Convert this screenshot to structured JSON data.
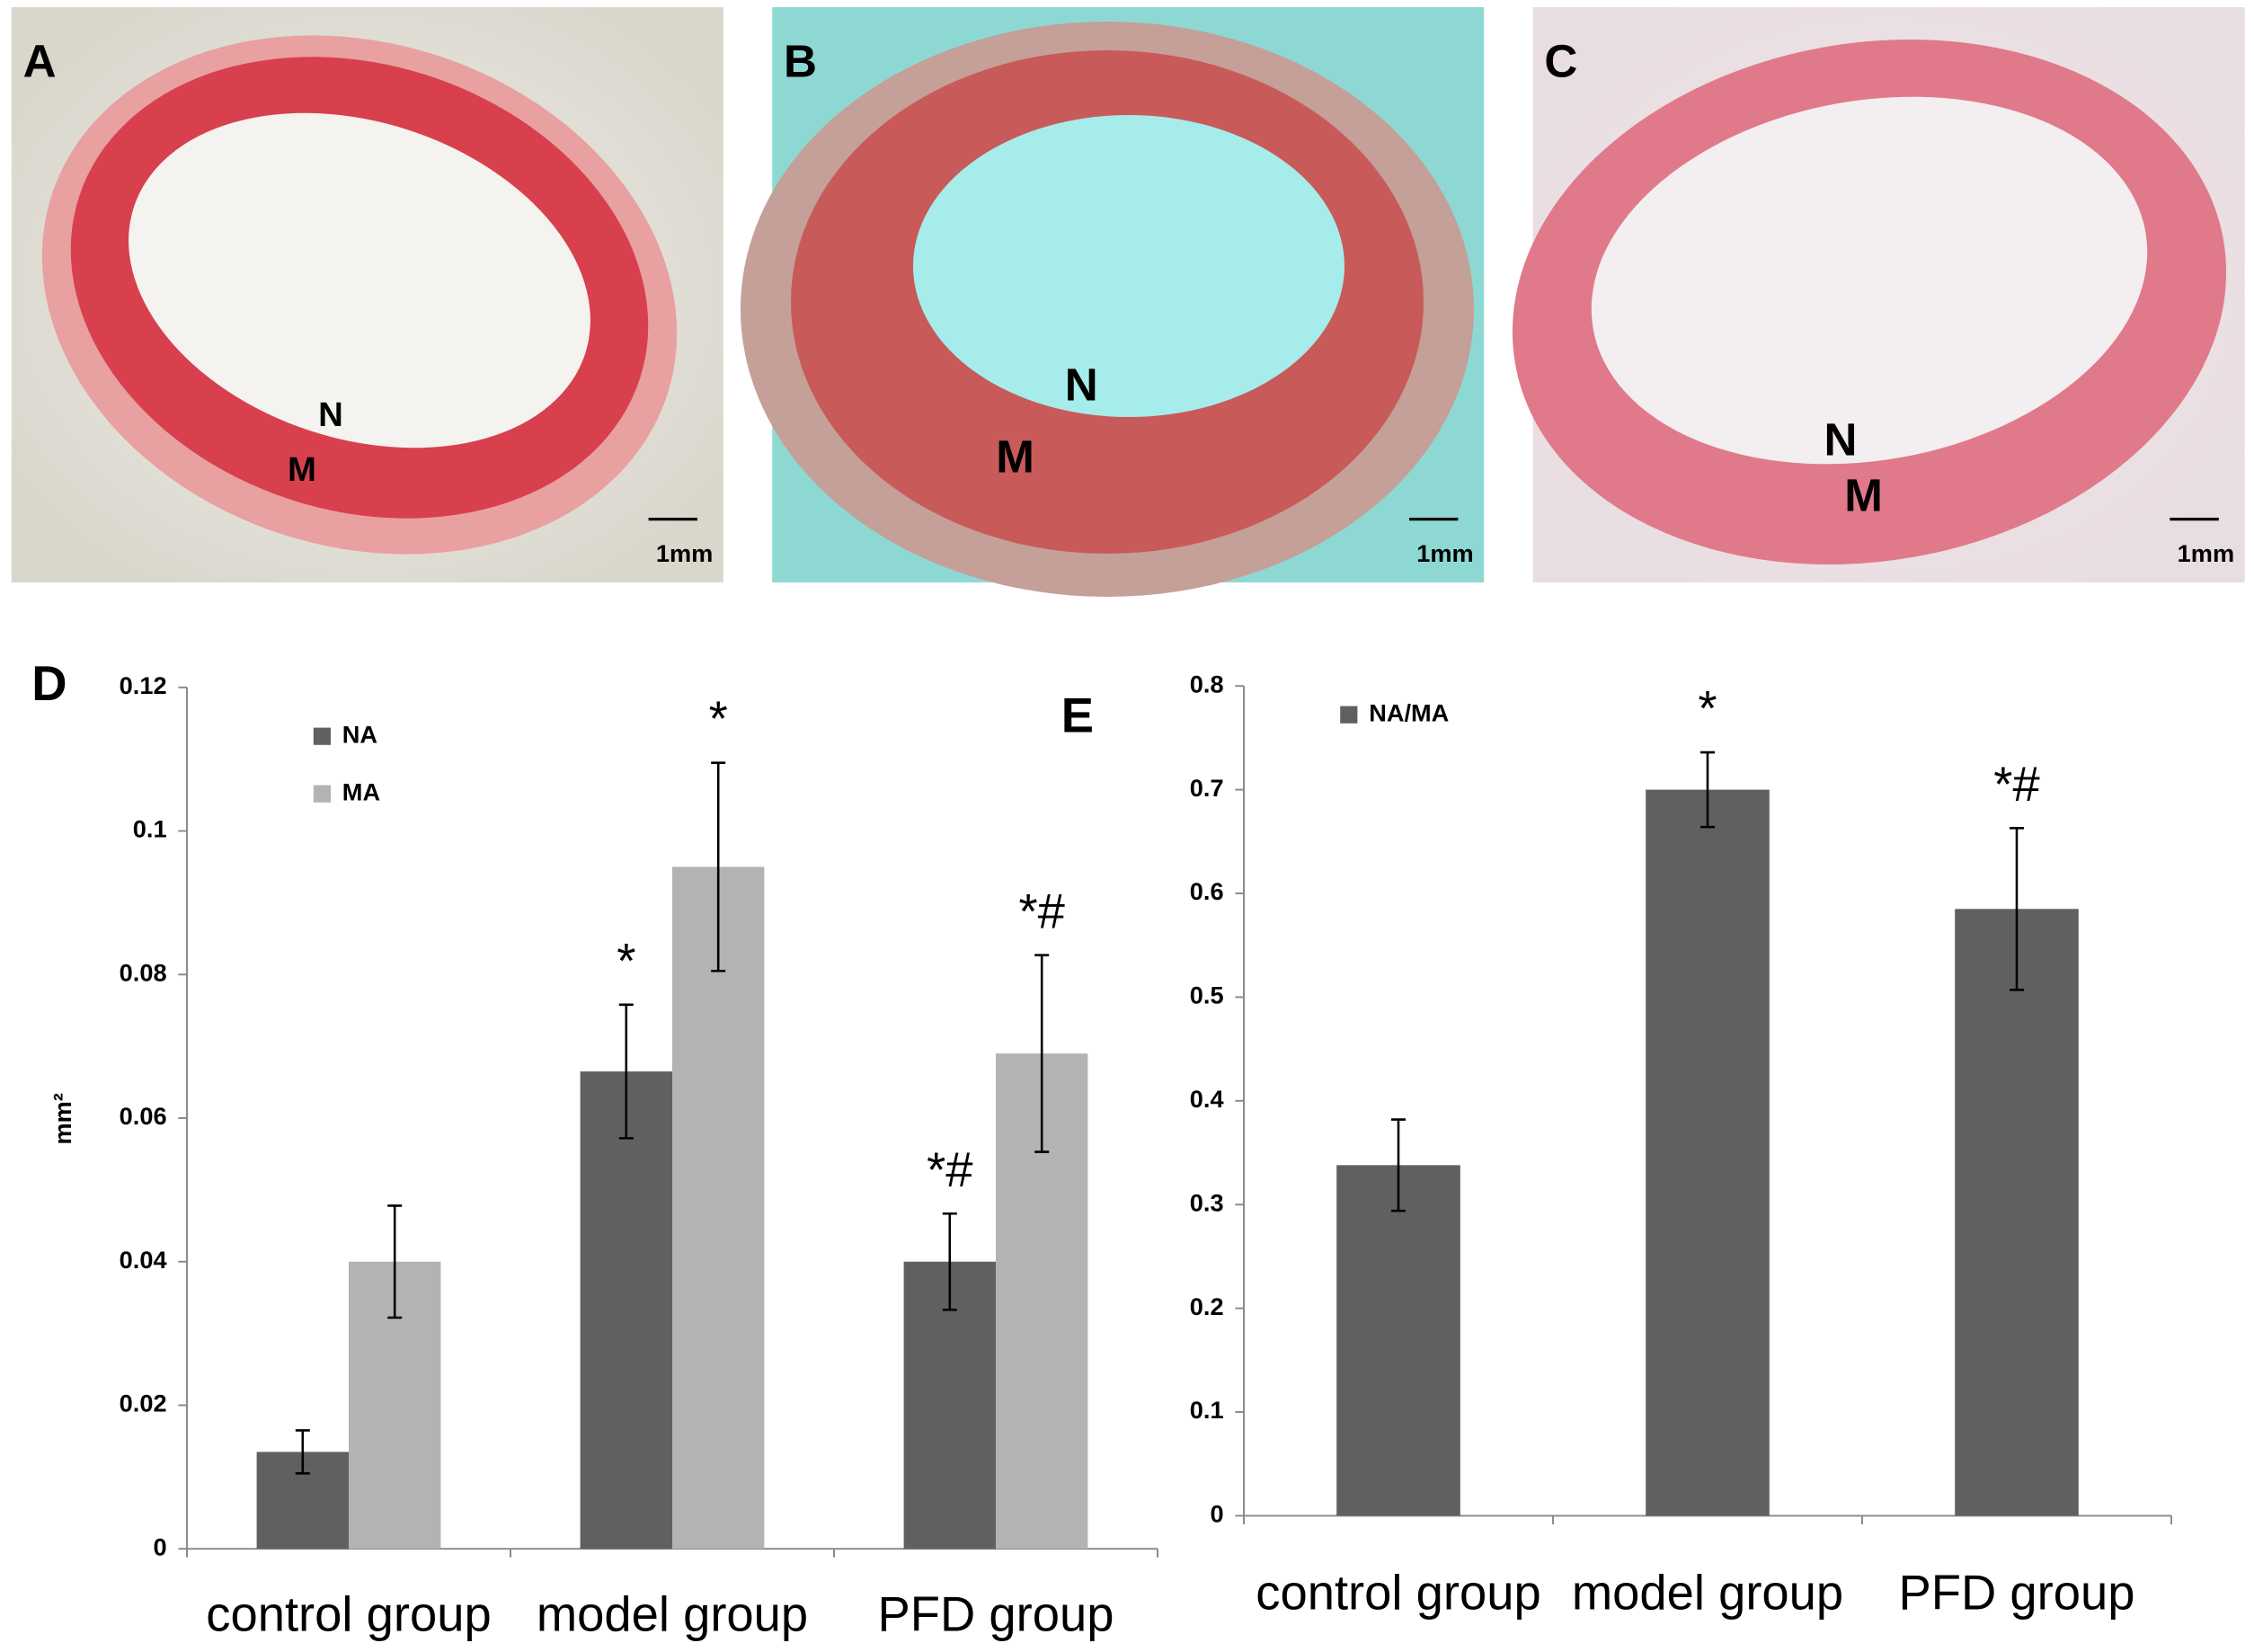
{
  "panels": [
    {
      "label": "A",
      "markers": [
        "N",
        "M"
      ],
      "scale_bar": "1mm"
    },
    {
      "label": "B",
      "markers": [
        "N",
        "M"
      ],
      "scale_bar": "1mm"
    },
    {
      "label": "C",
      "markers": [
        "N",
        "M"
      ],
      "scale_bar": "1mm"
    }
  ],
  "chart_data": [
    {
      "type": "bar",
      "panel_label": "D",
      "y_label": "mm²",
      "categories": [
        "control group",
        "model group",
        "PFD group"
      ],
      "series": [
        {
          "name": "NA",
          "color": "#606060",
          "values": [
            0.0135,
            0.0665,
            0.04
          ],
          "errors": [
            0.003,
            0.0093,
            0.0067
          ],
          "annotations": [
            null,
            "*",
            "*#"
          ]
        },
        {
          "name": "MA",
          "color": "#b3b3b3",
          "values": [
            0.04,
            0.095,
            0.069
          ],
          "errors": [
            0.0078,
            0.0145,
            0.0137
          ],
          "annotations": [
            null,
            "*",
            "*#"
          ]
        }
      ],
      "ylim": [
        0,
        0.12
      ],
      "yticks": [
        0,
        0.02,
        0.04,
        0.06,
        0.08,
        0.1,
        0.12
      ],
      "legend": "upper left",
      "grid": false
    },
    {
      "type": "bar",
      "panel_label": "E",
      "categories": [
        "control group",
        "model group",
        "PFD group"
      ],
      "series": [
        {
          "name": "NA/MA",
          "color": "#606060",
          "values": [
            0.338,
            0.7,
            0.585
          ],
          "errors": [
            0.044,
            0.036,
            0.078
          ],
          "annotations": [
            null,
            "*",
            "*#"
          ]
        }
      ],
      "ylim": [
        0,
        0.8
      ],
      "yticks": [
        0,
        0.1,
        0.2,
        0.3,
        0.4,
        0.5,
        0.6,
        0.7,
        0.8
      ],
      "legend": "upper left",
      "grid": false
    }
  ]
}
